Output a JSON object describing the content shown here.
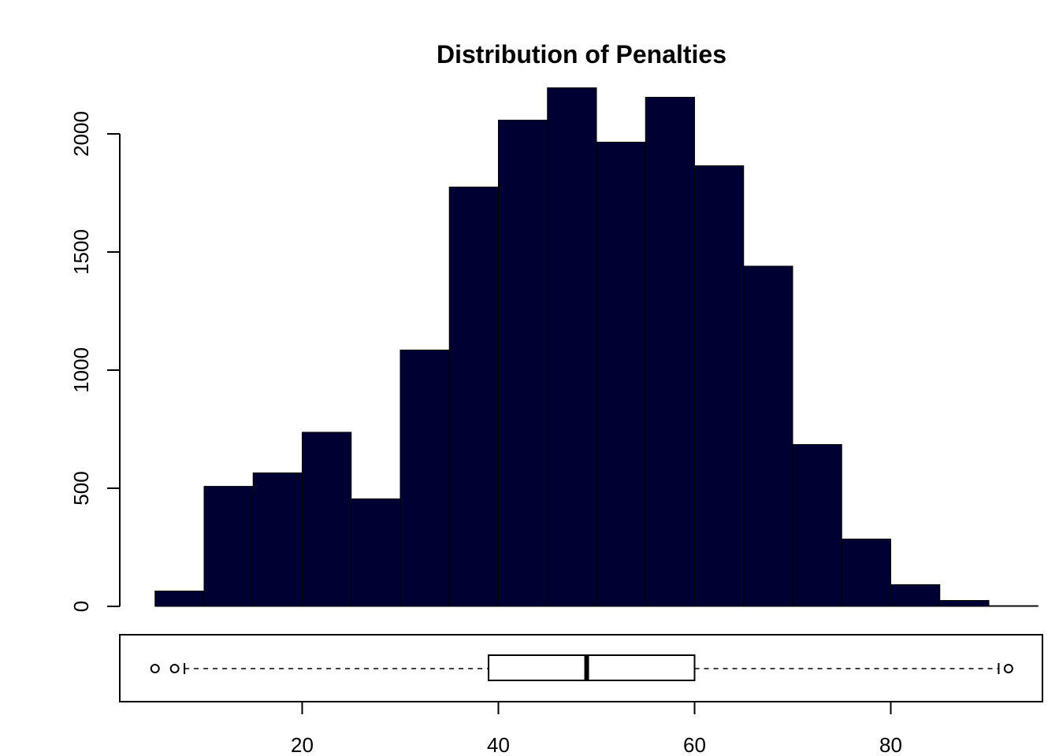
{
  "chart_data": {
    "type": "bar",
    "title": "Distribution of Penalties",
    "xlabel": "",
    "ylabel": "",
    "bar_color": "#000033",
    "bins": [
      {
        "x0": 5,
        "x1": 10,
        "count": 65
      },
      {
        "x0": 10,
        "x1": 15,
        "count": 508
      },
      {
        "x0": 15,
        "x1": 20,
        "count": 565
      },
      {
        "x0": 20,
        "x1": 25,
        "count": 737
      },
      {
        "x0": 25,
        "x1": 30,
        "count": 455
      },
      {
        "x0": 30,
        "x1": 35,
        "count": 1085
      },
      {
        "x0": 35,
        "x1": 40,
        "count": 1775
      },
      {
        "x0": 40,
        "x1": 45,
        "count": 2058
      },
      {
        "x0": 45,
        "x1": 50,
        "count": 2195
      },
      {
        "x0": 50,
        "x1": 55,
        "count": 1965
      },
      {
        "x0": 55,
        "x1": 60,
        "count": 2155
      },
      {
        "x0": 60,
        "x1": 65,
        "count": 1865
      },
      {
        "x0": 65,
        "x1": 70,
        "count": 1440
      },
      {
        "x0": 70,
        "x1": 75,
        "count": 685
      },
      {
        "x0": 75,
        "x1": 80,
        "count": 285
      },
      {
        "x0": 80,
        "x1": 85,
        "count": 92
      },
      {
        "x0": 85,
        "x1": 90,
        "count": 25
      },
      {
        "x0": 90,
        "x1": 95,
        "count": 3
      }
    ],
    "y_ticks": [
      "0",
      "500",
      "1000",
      "1500",
      "2000"
    ],
    "y_tick_values": [
      0,
      500,
      1000,
      1500,
      2000
    ],
    "ylim": [
      0,
      2200
    ],
    "x_ticks": [
      "20",
      "40",
      "60",
      "80"
    ],
    "x_tick_values": [
      20,
      40,
      60,
      80
    ],
    "xlim": [
      5,
      95
    ],
    "boxplot": {
      "q1": 39,
      "median": 49,
      "q3": 60,
      "whisker_low": 8,
      "whisker_high": 91,
      "outliers": [
        5,
        7,
        92
      ]
    }
  }
}
